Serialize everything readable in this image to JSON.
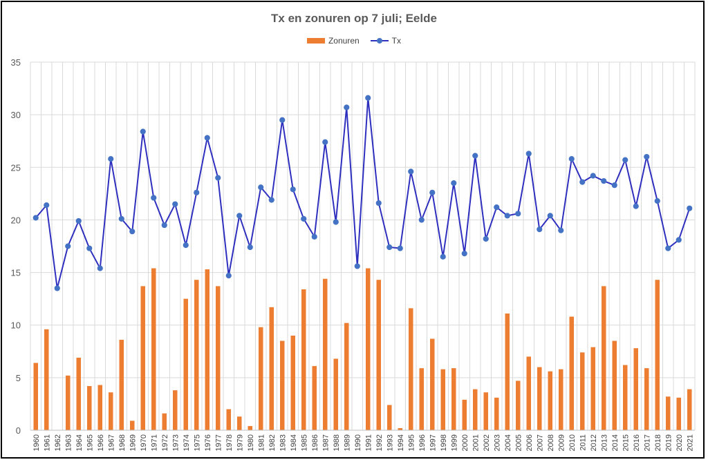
{
  "chart_data": {
    "type": "bar",
    "title": "Tx en zonuren op 7 juli; Eelde",
    "xlabel": "",
    "ylabel": "",
    "ylim": [
      0,
      35
    ],
    "yticks": [
      0,
      5,
      10,
      15,
      20,
      25,
      30,
      35
    ],
    "grid": true,
    "legend_position": "top",
    "categories": [
      "1960",
      "1961",
      "1962",
      "1963",
      "1964",
      "1965",
      "1966",
      "1967",
      "1968",
      "1969",
      "1970",
      "1971",
      "1972",
      "1973",
      "1974",
      "1975",
      "1976",
      "1977",
      "1978",
      "1979",
      "1980",
      "1981",
      "1982",
      "1983",
      "1984",
      "1985",
      "1986",
      "1987",
      "1988",
      "1989",
      "1990",
      "1991",
      "1992",
      "1993",
      "1994",
      "1995",
      "1996",
      "1997",
      "1998",
      "1999",
      "2000",
      "2001",
      "2002",
      "2003",
      "2004",
      "2005",
      "2006",
      "2007",
      "2008",
      "2009",
      "2010",
      "2011",
      "2012",
      "2013",
      "2014",
      "2015",
      "2016",
      "2017",
      "2018",
      "2019",
      "2020",
      "2021"
    ],
    "series": [
      {
        "name": "Zonuren",
        "kind": "bar",
        "color": "#ED7D31",
        "values": [
          6.4,
          9.6,
          0,
          5.2,
          6.9,
          4.2,
          4.3,
          3.6,
          8.6,
          0.9,
          13.7,
          15.4,
          1.6,
          3.8,
          12.5,
          14.3,
          15.3,
          13.7,
          2.0,
          1.3,
          0.4,
          9.8,
          11.7,
          8.5,
          9.0,
          13.4,
          6.1,
          14.4,
          6.8,
          10.2,
          0,
          15.4,
          14.3,
          2.4,
          0.2,
          11.6,
          5.9,
          8.7,
          5.8,
          5.9,
          2.9,
          3.9,
          3.6,
          3.1,
          11.1,
          4.7,
          7.0,
          6.0,
          5.6,
          5.8,
          10.8,
          7.4,
          7.9,
          13.7,
          8.5,
          6.2,
          7.8,
          5.9,
          14.3,
          3.2,
          3.1,
          3.9
        ]
      },
      {
        "name": "Tx",
        "kind": "line",
        "color": "#2F2FBF",
        "marker_color": "#4472C4",
        "values": [
          20.2,
          21.4,
          13.5,
          17.5,
          19.9,
          17.3,
          15.4,
          25.8,
          20.1,
          18.9,
          28.4,
          22.1,
          19.5,
          21.5,
          17.6,
          22.6,
          27.8,
          24.0,
          14.7,
          20.4,
          17.4,
          23.1,
          21.9,
          29.5,
          22.9,
          20.1,
          18.4,
          27.4,
          19.8,
          30.7,
          15.6,
          31.6,
          21.6,
          17.4,
          17.3,
          24.6,
          20.0,
          22.6,
          16.5,
          23.5,
          16.8,
          26.1,
          18.2,
          21.2,
          20.4,
          20.6,
          26.3,
          19.1,
          20.4,
          19.0,
          25.8,
          23.6,
          24.2,
          23.7,
          23.3,
          25.7,
          21.3,
          26.0,
          21.8,
          17.3,
          18.1,
          21.1
        ]
      }
    ]
  }
}
